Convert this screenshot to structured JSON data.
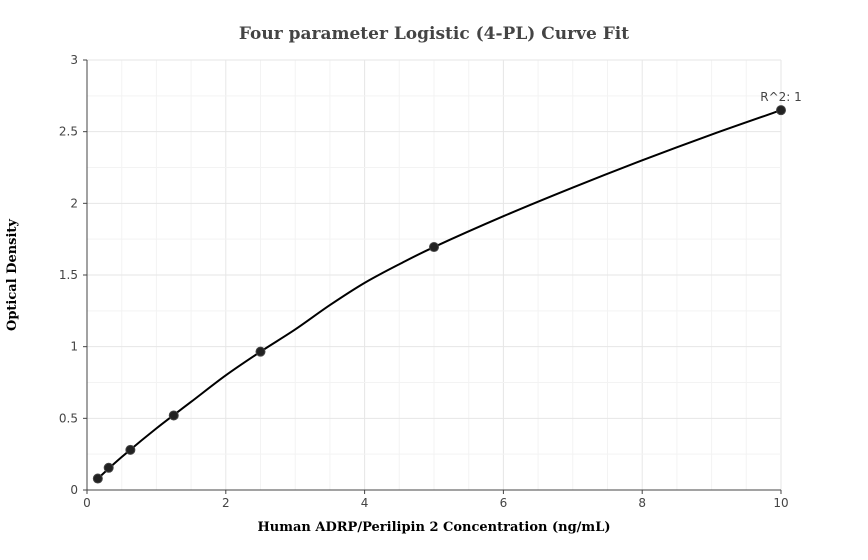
{
  "chart_data": {
    "type": "scatter",
    "title": "Four parameter Logistic (4-PL) Curve Fit",
    "xlabel": "Human ADRP/Perilipin 2 Concentration (ng/mL)",
    "ylabel": "Optical Density",
    "xlim": [
      0,
      10
    ],
    "ylim": [
      0,
      3
    ],
    "xticks": [
      0,
      2,
      4,
      6,
      8,
      10
    ],
    "yticks": [
      0,
      0.5,
      1,
      1.5,
      2,
      2.5,
      3
    ],
    "xtick_labels": [
      "0",
      "2",
      "4",
      "6",
      "8",
      "10"
    ],
    "ytick_labels": [
      "0",
      "0.5",
      "1",
      "1.5",
      "2",
      "2.5",
      "3"
    ],
    "grid": true,
    "series": [
      {
        "points": [
          {
            "x": 0.156,
            "y": 0.08
          },
          {
            "x": 0.3125,
            "y": 0.155
          },
          {
            "x": 0.625,
            "y": 0.28
          },
          {
            "x": 1.25,
            "y": 0.52
          },
          {
            "x": 2.5,
            "y": 0.965
          },
          {
            "x": 5,
            "y": 1.695
          },
          {
            "x": 10,
            "y": 2.65
          }
        ]
      }
    ],
    "fit_curve": {
      "points": [
        {
          "x": 0.156,
          "y": 0.08
        },
        {
          "x": 0.5,
          "y": 0.23
        },
        {
          "x": 1.0,
          "y": 0.43
        },
        {
          "x": 1.5,
          "y": 0.615
        },
        {
          "x": 2.0,
          "y": 0.8
        },
        {
          "x": 2.5,
          "y": 0.965
        },
        {
          "x": 3.0,
          "y": 1.12
        },
        {
          "x": 3.5,
          "y": 1.29
        },
        {
          "x": 4.0,
          "y": 1.445
        },
        {
          "x": 4.5,
          "y": 1.575
        },
        {
          "x": 5.0,
          "y": 1.695
        },
        {
          "x": 6.0,
          "y": 1.91
        },
        {
          "x": 7.0,
          "y": 2.11
        },
        {
          "x": 8.0,
          "y": 2.3
        },
        {
          "x": 9.0,
          "y": 2.48
        },
        {
          "x": 10.0,
          "y": 2.65
        }
      ]
    },
    "annotation": {
      "text": "R^2: 1",
      "x": 10,
      "y": 2.65
    }
  }
}
